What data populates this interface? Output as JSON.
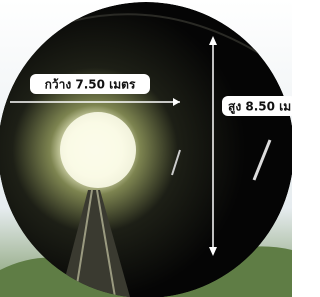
{
  "labels": {
    "width": "กว้าง 7.50 เมตร",
    "height": "สูง 8.50 เม"
  }
}
